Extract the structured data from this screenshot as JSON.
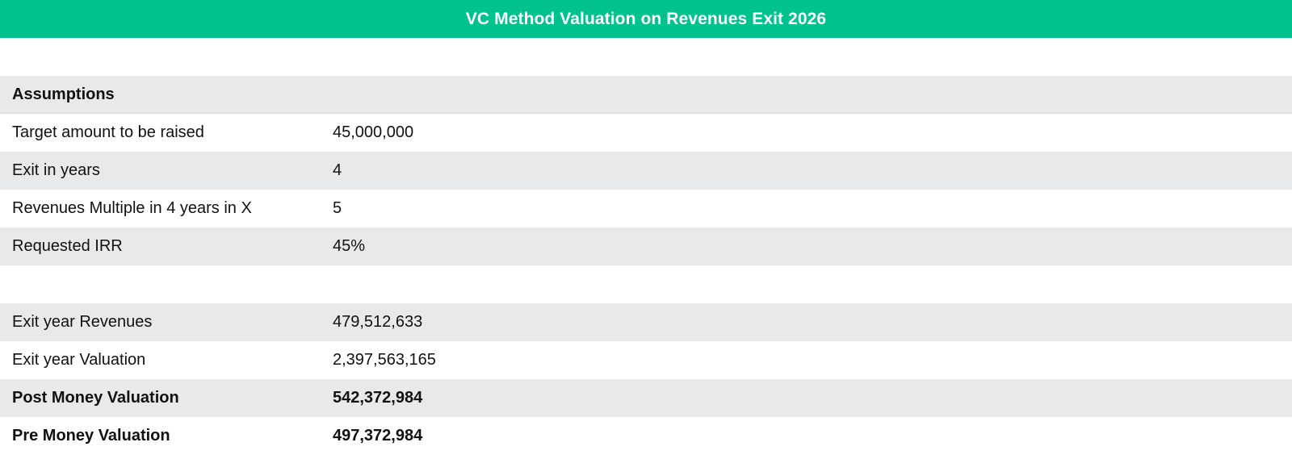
{
  "title": "VC Method Valuation on Revenues Exit 2026",
  "assumptions": {
    "heading": "Assumptions",
    "rows": [
      {
        "label": "Target amount to be raised",
        "value": "45,000,000"
      },
      {
        "label": "Exit in years",
        "value": "4"
      },
      {
        "label": "Revenues Multiple in 4 years in X",
        "value": "5"
      },
      {
        "label": "Requested IRR",
        "value": "45%"
      }
    ]
  },
  "results": {
    "rows": [
      {
        "label": "Exit year Revenues",
        "value": "479,512,633"
      },
      {
        "label": "Exit year Valuation",
        "value": "2,397,563,165"
      },
      {
        "label": "Post Money Valuation",
        "value": "542,372,984"
      },
      {
        "label": "Pre Money Valuation",
        "value": "497,372,984"
      }
    ]
  }
}
